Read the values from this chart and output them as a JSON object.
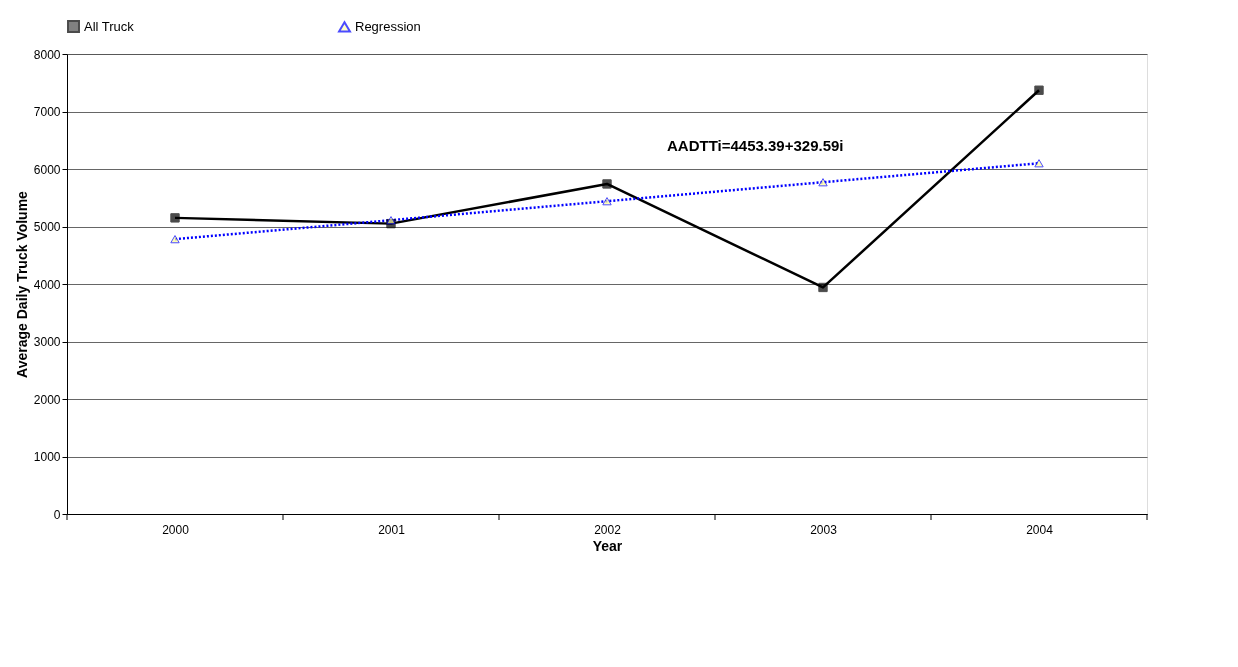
{
  "chart_data": {
    "type": "line",
    "xlabel": "Year",
    "ylabel": "Average Daily Truck Volume",
    "categories": [
      "2000",
      "2001",
      "2002",
      "2003",
      "2004"
    ],
    "series": [
      {
        "name": "All Truck",
        "color": "#000000",
        "values": [
          5150,
          5050,
          5740,
          3940,
          7370
        ],
        "marker": "square",
        "line_style": "solid"
      },
      {
        "name": "Regression",
        "color": "#0000ff",
        "values": [
          4780,
          5110,
          5440,
          5770,
          6100
        ],
        "marker": "triangle",
        "line_style": "dotted"
      }
    ],
    "annotations": [
      "AADTTi=4453.39+329.59i"
    ],
    "ylim": [
      0,
      8000
    ],
    "yticks": [
      0,
      1000,
      2000,
      3000,
      4000,
      5000,
      6000,
      7000,
      8000
    ],
    "grid": "y",
    "legend": "top"
  }
}
